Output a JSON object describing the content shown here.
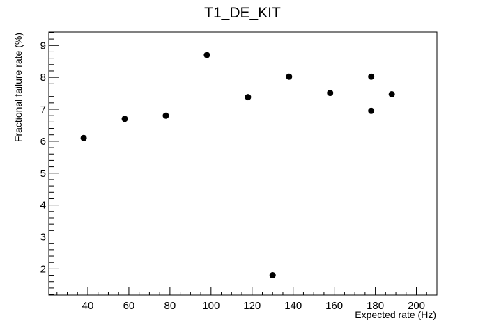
{
  "chart_data": {
    "type": "scatter",
    "title": "T1_DE_KIT",
    "xlabel": "Expected rate (Hz)",
    "ylabel": "Fractional failure rate (%)",
    "xlim": [
      21,
      210
    ],
    "ylim": [
      1.18,
      9.42
    ],
    "xticks": [
      40,
      60,
      80,
      100,
      120,
      140,
      160,
      180,
      200
    ],
    "yticks": [
      2,
      3,
      4,
      5,
      6,
      7,
      8,
      9
    ],
    "grid": false,
    "legend": "none",
    "marker_color": "#000000",
    "series": [
      {
        "x": [
          38,
          58,
          78,
          98,
          118,
          130,
          138,
          158,
          178,
          178,
          188
        ],
        "y": [
          6.1,
          6.7,
          6.8,
          8.7,
          7.38,
          1.8,
          8.02,
          7.51,
          8.02,
          6.95,
          7.47
        ]
      }
    ]
  }
}
